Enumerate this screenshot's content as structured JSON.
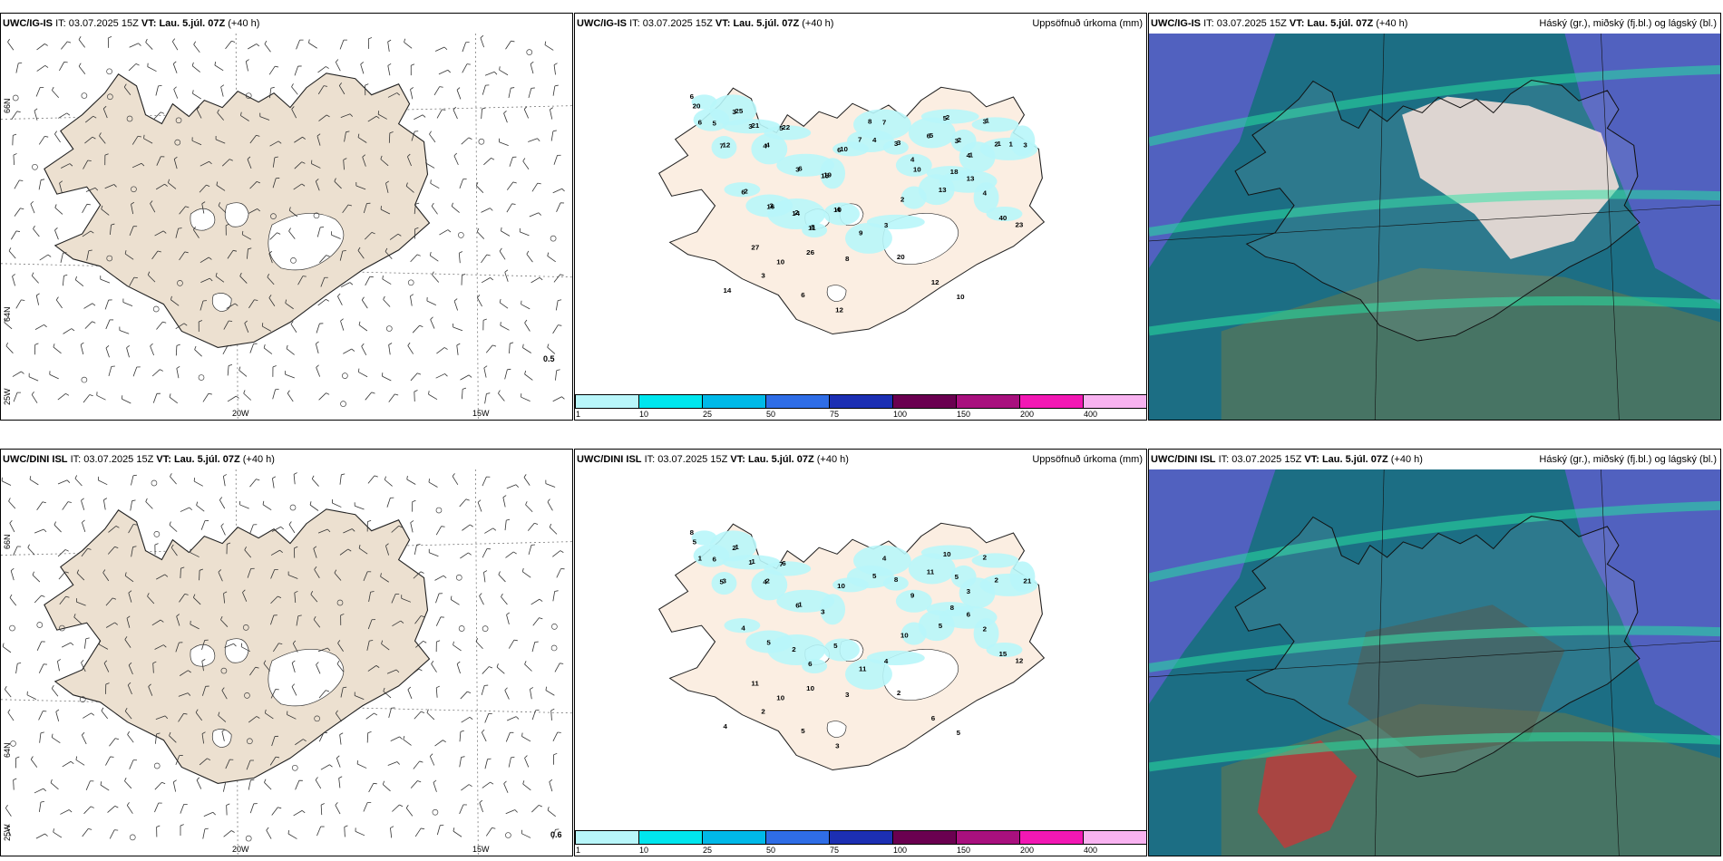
{
  "rows": [
    {
      "model": "UWC/IG-IS",
      "it_label": "IT:",
      "it_value": "03.07.2025 15Z",
      "vt_label": "VT:",
      "vt_value": "Lau. 5.júl. 07Z",
      "lead": "(+40 h)",
      "wind_value": "0.5",
      "precip_numbers": [
        "6",
        "5",
        "3",
        "3",
        "7",
        "4",
        "5",
        "3",
        "15",
        "6",
        "4",
        "7",
        "3",
        "4",
        "6",
        "5",
        "3",
        "4",
        "3",
        "2",
        "3",
        "6",
        "16",
        "14",
        "11",
        "10",
        "9",
        "3",
        "2",
        "13",
        "18",
        "13",
        "4",
        "40",
        "23",
        "27",
        "10",
        "26",
        "8",
        "20",
        "12",
        "10",
        "6",
        "12",
        "3",
        "14",
        "20",
        "6",
        "25",
        "21",
        "12",
        "4",
        "22",
        "6",
        "19",
        "10",
        "7",
        "8",
        "3",
        "10",
        "5",
        "2",
        "2",
        "1",
        "1",
        "1",
        "1",
        "2",
        "3",
        "2",
        "8",
        "4"
      ]
    },
    {
      "model": "UWC/DINI ISL",
      "it_label": "IT:",
      "it_value": "03.07.2025 15Z",
      "vt_label": "VT:",
      "vt_value": "Lau. 5.júl. 07Z",
      "lead": "(+40 h)",
      "wind_value": "0.6",
      "precip_numbers": [
        "8",
        "6",
        "2",
        "1",
        "5",
        "4",
        "7",
        "6",
        "3",
        "10",
        "5",
        "4",
        "8",
        "9",
        "11",
        "10",
        "5",
        "3",
        "2",
        "2",
        "21",
        "4",
        "5",
        "2",
        "6",
        "5",
        "11",
        "4",
        "10",
        "5",
        "8",
        "6",
        "2",
        "15",
        "12",
        "11",
        "10",
        "10",
        "3",
        "2",
        "6",
        "5",
        "5",
        "3",
        "2",
        "4",
        "5",
        "1",
        "1",
        "1",
        "3",
        "2",
        "6",
        "1"
      ]
    }
  ],
  "precip_title": "Uppsöfnuð úrkoma (mm)",
  "cloud_title": "Háský (gr.), miðský (fj.bl.) og lágský (bl.)",
  "lon_labels": [
    "20W",
    "15W"
  ],
  "lat_labels": [
    "66N",
    "64N",
    "25W"
  ],
  "colorbar": {
    "ticks": [
      "1",
      "10",
      "25",
      "50",
      "75",
      "100",
      "150",
      "200",
      "400"
    ],
    "colors": [
      "#b8f6fa",
      "#00e6ee",
      "#00b9e8",
      "#2f6de6",
      "#1c2fb3",
      "#6a0050",
      "#a8107e",
      "#f218b4",
      "#f8b2f0"
    ]
  },
  "colors": {
    "land": "#ece0d0",
    "land_precip": "#fbeee2",
    "sea_cloud": "#1c6e84"
  }
}
